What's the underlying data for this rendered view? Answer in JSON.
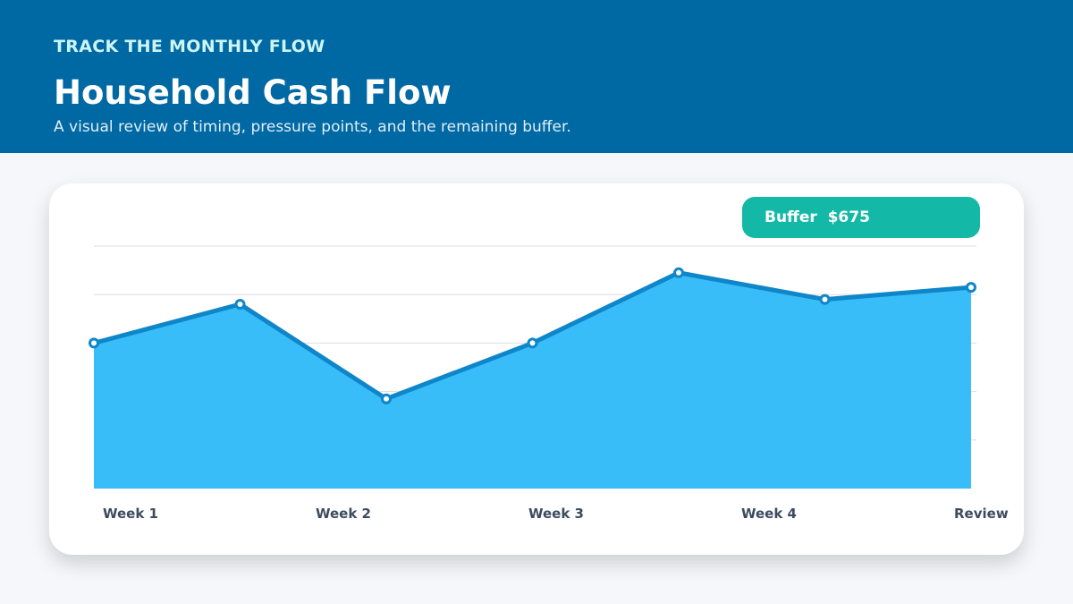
{
  "header": {
    "eyebrow": "TRACK THE MONTHLY FLOW",
    "title": "Household Cash Flow",
    "subtitle": "A visual review of timing, pressure points, and the remaining buffer."
  },
  "badge": {
    "label": "Buffer",
    "value": "$675",
    "text": "Buffer  $675"
  },
  "colors": {
    "header_bg": "#0069a3",
    "area_fill": "#38bdf8",
    "line": "#0e86c9",
    "badge": "#14b8a6"
  },
  "chart_data": {
    "type": "area",
    "tick_labels": [
      "Week 1",
      "Week 2",
      "Week 3",
      "Week 4",
      "Review"
    ],
    "x": [
      0,
      1,
      2,
      3,
      4,
      5,
      6
    ],
    "values": [
      0.6,
      0.76,
      0.37,
      0.6,
      0.89,
      0.78,
      0.83
    ],
    "ylim": [
      0,
      1
    ],
    "grid": true,
    "y_gridlines": [
      0.2,
      0.4,
      0.6,
      0.8,
      1.0
    ],
    "markers": true
  }
}
